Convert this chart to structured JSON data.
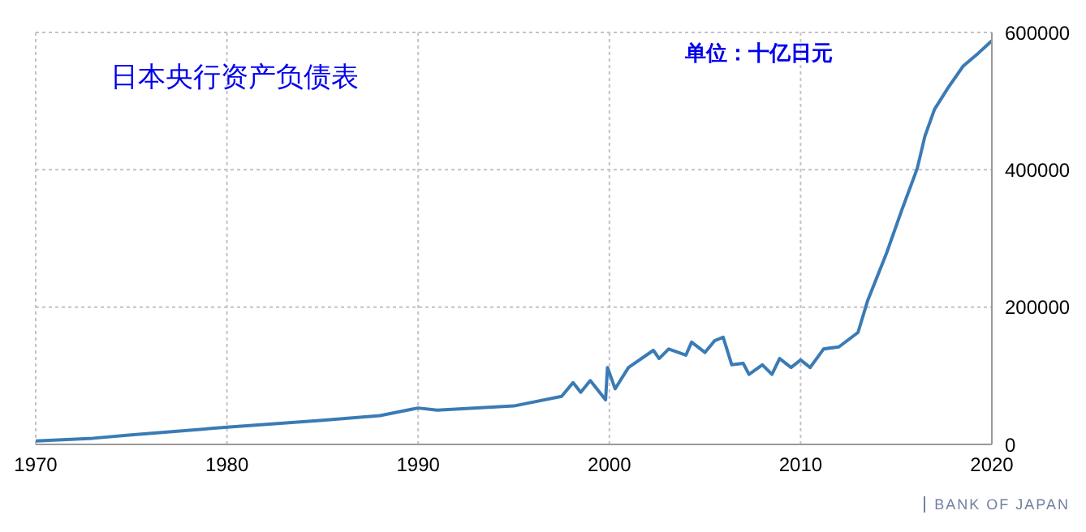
{
  "chart_data": {
    "type": "line",
    "title": "日本央行资产负债表",
    "annotations": [
      "单位：十亿日元",
      "BANK OF JAPAN"
    ],
    "x": [
      1970,
      1973,
      1975,
      1980,
      1985,
      1988,
      1990,
      1991,
      1995,
      1997.5,
      1998.1,
      1998.5,
      1999,
      1999.8,
      1999.9,
      2000.3,
      2001,
      2002.3,
      2002.6,
      2003.1,
      2004,
      2004.3,
      2005,
      2005.5,
      2005.95,
      2006.4,
      2007,
      2007.3,
      2008,
      2008.5,
      2008.9,
      2009.5,
      2010,
      2010.5,
      2011.2,
      2012,
      2013,
      2013.5,
      2014.5,
      2015.3,
      2016.1,
      2016.5,
      2017,
      2017.7,
      2018.5,
      2019.3,
      2020
    ],
    "series": [
      {
        "color": "#3a7bb5",
        "values": [
          5000,
          9000,
          14000,
          25000,
          35000,
          42000,
          53000,
          50000,
          56000,
          70000,
          90000,
          76000,
          93000,
          65000,
          112000,
          81000,
          112000,
          137000,
          125000,
          139000,
          130000,
          149000,
          134000,
          151000,
          156000,
          116000,
          118000,
          102000,
          116000,
          102000,
          125000,
          112000,
          123000,
          112000,
          139000,
          142000,
          163000,
          209000,
          279000,
          342000,
          402000,
          449000,
          488000,
          519000,
          551000,
          570000,
          588000
        ]
      }
    ],
    "xlim": [
      1970,
      2020
    ],
    "xticks": [
      1970,
      1980,
      1990,
      2000,
      2010,
      2020
    ],
    "ylim": [
      0,
      600000
    ],
    "yticks": [
      0,
      200000,
      400000,
      600000
    ],
    "grid": true
  }
}
